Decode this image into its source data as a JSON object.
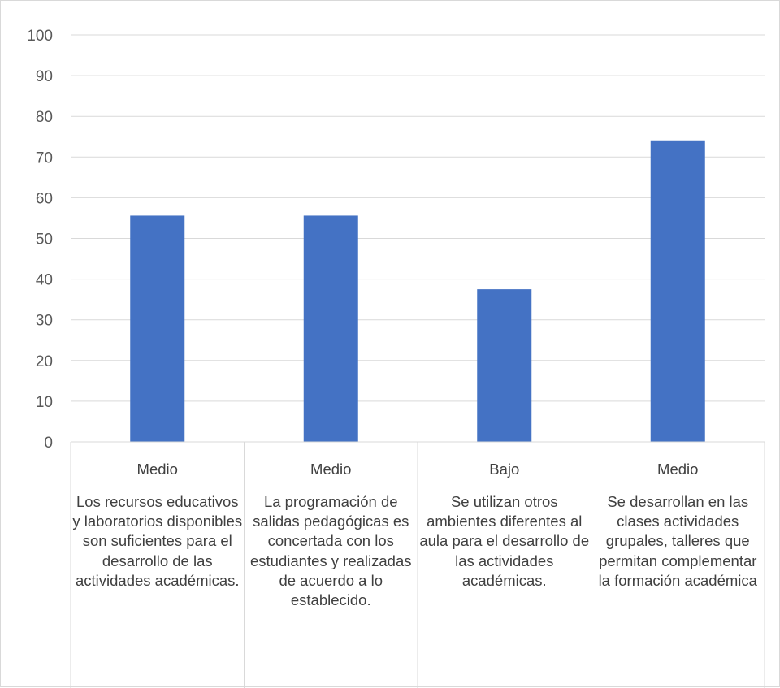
{
  "chart_data": {
    "type": "bar",
    "categories": [
      {
        "level": "Medio",
        "description": "Los recursos educativos y laboratorios disponibles son suficientes para el desarrollo de las actividades académicas."
      },
      {
        "level": "Medio",
        "description": "La programación de salidas pedagógicas es concertada con los estudiantes y realizadas de acuerdo a lo establecido."
      },
      {
        "level": "Bajo",
        "description": "Se utilizan otros ambientes diferentes al aula para el desarrollo de las actividades académicas."
      },
      {
        "level": "Medio",
        "description": "Se desarrollan en las clases actividades grupales, talleres que permitan complementar la formación académica"
      }
    ],
    "values": [
      55.6,
      55.6,
      37.5,
      74.1
    ],
    "ylim": [
      0,
      100
    ],
    "yticks": [
      "0",
      "10",
      "20",
      "30",
      "40",
      "50",
      "60",
      "70",
      "80",
      "90",
      "100"
    ],
    "grid": true,
    "title": "",
    "xlabel": "",
    "ylabel": "",
    "bar_color": "#4472C4",
    "grid_color": "#d9d9d9",
    "text_color": "#595959"
  }
}
